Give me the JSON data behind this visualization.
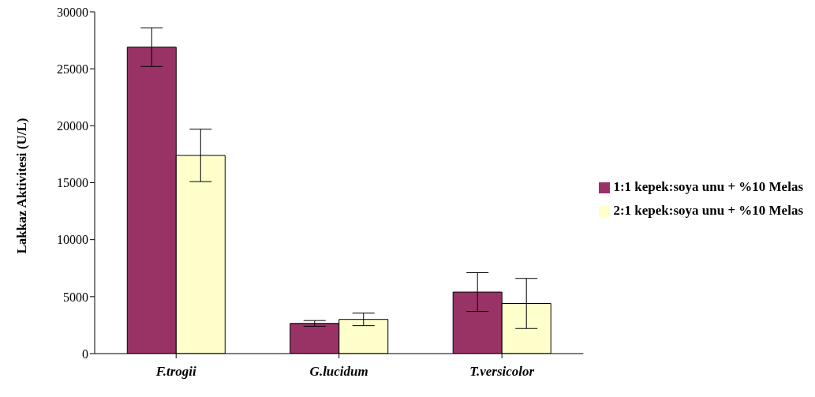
{
  "chart_data": {
    "type": "bar",
    "ylabel": "Lakkaz Aktivitesi (U/L)",
    "categories": [
      "F.trogii",
      "G.lucidum",
      "T.versicolor"
    ],
    "series": [
      {
        "name": "1:1 kepek:soya unu + %10 Melas",
        "color": "#993366",
        "values": [
          26900,
          2650,
          5400
        ],
        "errors": [
          1700,
          250,
          1700
        ]
      },
      {
        "name": "2:1 kepek:soya unu + %10 Melas",
        "color": "#ffffcc",
        "values": [
          17400,
          3000,
          4400
        ],
        "errors": [
          2300,
          550,
          2200
        ]
      }
    ],
    "ylim": [
      0,
      30000
    ],
    "yticks": [
      0,
      5000,
      10000,
      15000,
      20000,
      25000,
      30000
    ],
    "grid": false,
    "legend": "right"
  }
}
